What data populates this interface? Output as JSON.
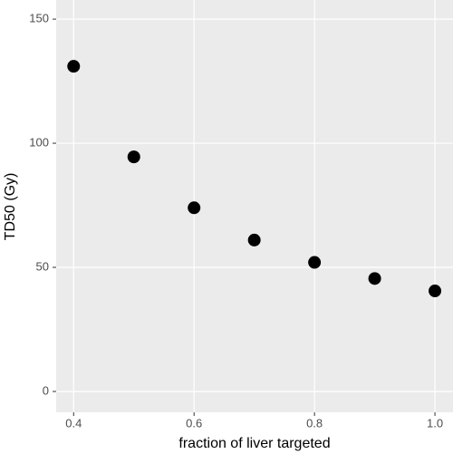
{
  "chart_data": {
    "type": "scatter",
    "x_label": "fraction of liver targeted",
    "y_label": "TD50 (Gy)",
    "x": [
      0.4,
      0.5,
      0.6,
      0.7,
      0.8,
      0.9,
      1.0
    ],
    "series": [
      {
        "color": "#000000",
        "values": [
          131,
          94.5,
          74,
          61,
          52,
          45.5,
          40.5
        ]
      }
    ],
    "xlim": [
      0.371,
      1.03
    ],
    "xticks": [
      0.4,
      0.6,
      0.8,
      {
        "value": 1,
        "label": "1.0"
      }
    ],
    "ylim": [
      -8.4,
      157.7
    ],
    "yticks": [
      0,
      50,
      100,
      150
    ],
    "grid": true
  }
}
